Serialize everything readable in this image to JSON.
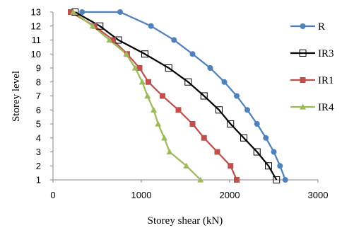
{
  "chart_data": {
    "type": "line",
    "title": "",
    "xlabel": "Storey shear (kN)",
    "ylabel": "Storey level",
    "xlim": [
      0,
      3000
    ],
    "ylim": [
      1,
      13
    ],
    "x_ticks": [
      "0",
      "1000",
      "2000",
      "3000"
    ],
    "y_ticks": [
      "1",
      "2",
      "3",
      "4",
      "5",
      "6",
      "7",
      "8",
      "9",
      "10",
      "11",
      "12",
      "13"
    ],
    "grid": false,
    "legend_position": "right",
    "series": [
      {
        "name": "R",
        "color": "#4f81bd",
        "marker": "circle",
        "x": [
          2630,
          2570,
          2500,
          2410,
          2310,
          2200,
          2080,
          1940,
          1780,
          1580,
          1370,
          1110,
          760,
          330
        ],
        "y": [
          1,
          2,
          3,
          4,
          5,
          6,
          7,
          8,
          9,
          10,
          11,
          12,
          13,
          13
        ]
      },
      {
        "name": "IR3",
        "color": "#000000",
        "marker": "open-square",
        "x": [
          2530,
          2440,
          2310,
          2160,
          2010,
          1880,
          1710,
          1530,
          1310,
          1040,
          740,
          530,
          250
        ],
        "y": [
          1,
          2,
          3,
          4,
          5,
          6,
          7,
          8,
          9,
          10,
          11,
          12,
          13
        ]
      },
      {
        "name": "IR1",
        "color": "#c0504d",
        "marker": "square",
        "x": [
          2080,
          2010,
          1860,
          1710,
          1580,
          1420,
          1240,
          1080,
          980,
          840,
          680,
          470,
          200
        ],
        "y": [
          1,
          2,
          3,
          4,
          5,
          6,
          7,
          8,
          9,
          10,
          11,
          12,
          13
        ]
      },
      {
        "name": "IR4",
        "color": "#9bbb59",
        "marker": "triangle",
        "x": [
          1670,
          1510,
          1320,
          1260,
          1190,
          1140,
          1070,
          1010,
          930,
          830,
          640,
          450,
          230
        ],
        "y": [
          1,
          2,
          3,
          4,
          5,
          6,
          7,
          8,
          9,
          10,
          11,
          12,
          13
        ]
      }
    ]
  }
}
